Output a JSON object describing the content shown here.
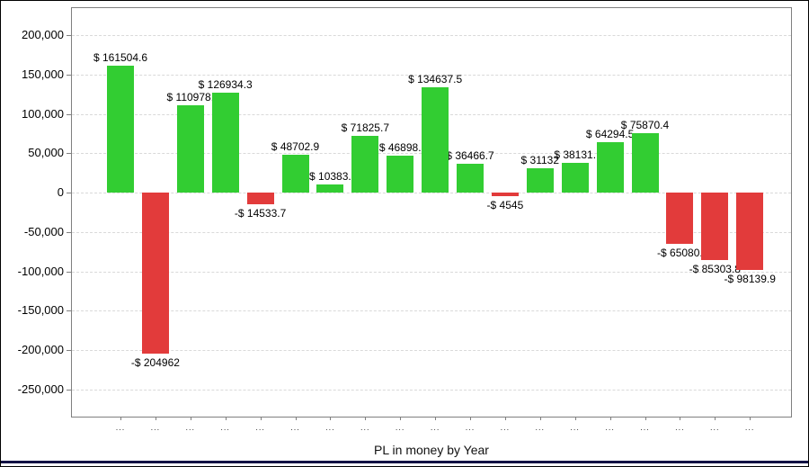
{
  "chart_data": {
    "type": "bar",
    "title": "PL in money by Year",
    "categories": [
      "...",
      "...",
      "...",
      "...",
      "...",
      "...",
      "...",
      "...",
      "...",
      "...",
      "...",
      "...",
      "...",
      "...",
      "...",
      "...",
      "...",
      "...",
      "..."
    ],
    "values": [
      161504.6,
      -204962,
      110978,
      126934.3,
      -14533.7,
      48702.9,
      10383,
      71825.7,
      46898,
      134637.5,
      36466.7,
      -4545,
      31132,
      38131,
      64294.5,
      75870.4,
      -65080,
      -85303.8,
      -98139.9
    ],
    "bar_labels": [
      "$ 161504.6",
      "-$ 204962",
      "$ 110978.",
      "$ 126934.3",
      "-$ 14533.7",
      "$ 48702.9",
      "$ 10383.",
      "$ 71825.7",
      "$ 46898.",
      "$ 134637.5",
      "$ 36466.7",
      "-$ 4545",
      "$ 31132",
      "$ 38131.",
      "$ 64294.5",
      "$ 75870.4",
      "-$ 65080.",
      "-$ 85303.8",
      "-$ 98139.9"
    ],
    "y_ticks": [
      200000,
      150000,
      100000,
      50000,
      0,
      -50000,
      -100000,
      -150000,
      -200000,
      -250000
    ],
    "y_tick_labels": [
      "200,000",
      "150,000",
      "100,000",
      "50,000",
      "0",
      "-50,000",
      "-100,000",
      "-150,000",
      "-200,000",
      "-250,000"
    ],
    "ylim": [
      -286000,
      236000
    ],
    "xlabel": "",
    "ylabel": "",
    "grid": "horizontal-dashed",
    "legend": "none",
    "positive_color": "#32cd32",
    "negative_color": "#e23b3b",
    "gridline_color": "#d9d9d9",
    "axis_color": "#7f7f7f",
    "bottom_line_color": "#121244"
  }
}
